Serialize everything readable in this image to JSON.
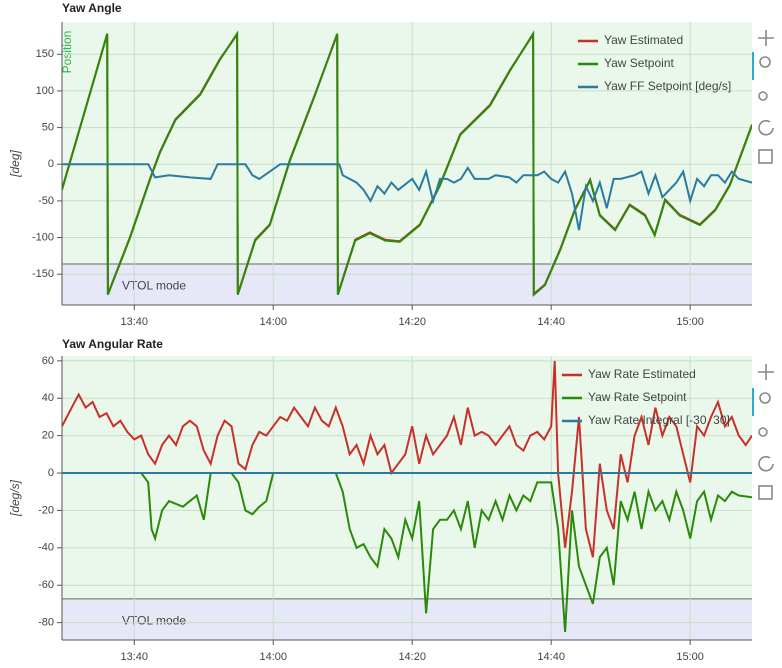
{
  "chart_data": [
    {
      "type": "line",
      "title": "Yaw Angle",
      "ylabel": "[deg]",
      "mode_label": "VTOL mode",
      "side_label": "Position",
      "xlim": [
        809.6,
        908.9
      ],
      "ylim": [
        -192,
        194
      ],
      "xticks": [
        {
          "value": 820,
          "label": "13:40"
        },
        {
          "value": 840,
          "label": "14:00"
        },
        {
          "value": 860,
          "label": "14:20"
        },
        {
          "value": 880,
          "label": "14:40"
        },
        {
          "value": 900,
          "label": "15:00"
        }
      ],
      "yticks": [
        -150,
        -100,
        -50,
        0,
        50,
        100,
        150
      ],
      "grid": true,
      "legend": "top-right",
      "series": [
        {
          "name": "Yaw Estimated",
          "color": "#c8302a",
          "x": [
            809.6,
            816.1,
            816.2,
            819.4,
            822.3,
            823.7,
            825.9,
            829.5,
            832.3,
            834.8,
            834.9,
            837.4,
            839.5,
            842.4,
            846,
            849.2,
            849.3,
            851.8,
            853.9,
            856.1,
            858.2,
            861.1,
            864,
            866.9,
            871.2,
            874.1,
            877.4,
            877.5,
            879.1,
            881.3,
            883.4,
            885.6,
            887,
            889.2,
            891.3,
            893.5,
            894.9,
            896.4,
            898.5,
            901.4,
            903.6,
            905.7,
            908.9
          ],
          "values": [
            -34,
            177,
            -177,
            -99,
            -19,
            17,
            61,
            96,
            143,
            177,
            -177,
            -103,
            -82,
            6,
            95,
            177,
            -177,
            -103,
            -93,
            -103,
            -105,
            -82,
            -28,
            41,
            81,
            129,
            177,
            -177,
            -164,
            -116,
            -62,
            -21,
            -69,
            -89,
            -55,
            -69,
            -96,
            -48,
            -69,
            -82,
            -62,
            -28,
            54
          ]
        },
        {
          "name": "Yaw Setpoint",
          "color": "#2a8a0a",
          "x": [
            809.6,
            816.1,
            816.2,
            819.4,
            822.3,
            823.7,
            825.9,
            829.5,
            832.3,
            834.8,
            834.9,
            837.4,
            839.5,
            842.4,
            846,
            849.2,
            849.3,
            851.8,
            853.9,
            856.1,
            858.2,
            861.1,
            864,
            866.9,
            871.2,
            874.1,
            877.4,
            877.5,
            879.1,
            881.3,
            883.4,
            885.6,
            887,
            889.2,
            891.3,
            893.5,
            894.9,
            896.4,
            898.5,
            901.4,
            903.6,
            905.7,
            908.9
          ],
          "values": [
            -35,
            178,
            -178,
            -100,
            -20,
            16,
            60,
            95,
            142,
            178,
            -178,
            -104,
            -83,
            5,
            94,
            178,
            -178,
            -104,
            -94,
            -104,
            -106,
            -83,
            -29,
            40,
            80,
            128,
            178,
            -178,
            -165,
            -117,
            -63,
            -22,
            -70,
            -90,
            -56,
            -70,
            -97,
            -49,
            -70,
            -83,
            -63,
            -29,
            53
          ]
        },
        {
          "name": "Yaw FF Setpoint [deg/s]",
          "color": "#2b7ba0",
          "x": [
            809.6,
            822,
            823,
            825,
            828,
            831,
            832,
            836,
            837,
            838,
            841,
            849.5,
            850,
            852,
            853,
            854,
            855,
            856,
            857,
            858,
            860,
            861,
            862,
            863,
            864,
            865,
            866,
            867,
            868,
            869,
            871,
            872,
            874,
            875,
            876,
            878,
            879,
            880,
            881,
            882,
            883,
            884,
            885,
            886,
            887,
            888,
            889,
            890,
            892,
            893,
            894,
            895,
            896,
            897,
            898,
            899,
            900,
            901,
            902,
            903,
            904,
            905,
            906,
            907,
            908.9
          ],
          "values": [
            0,
            0,
            -18,
            -15,
            -18,
            -20,
            0,
            0,
            -15,
            -20,
            0,
            0,
            -15,
            -25,
            -35,
            -50,
            -30,
            -40,
            -25,
            -35,
            -20,
            -35,
            -10,
            -50,
            -20,
            -20,
            -25,
            -20,
            -5,
            -20,
            -20,
            -15,
            -18,
            -25,
            -15,
            -15,
            -10,
            -20,
            -25,
            -10,
            -40,
            -90,
            -30,
            -50,
            -25,
            -60,
            -20,
            -20,
            -15,
            -10,
            -40,
            -15,
            -45,
            -35,
            -25,
            -10,
            -50,
            -20,
            -30,
            -15,
            -15,
            -25,
            -10,
            -20,
            -25
          ]
        }
      ]
    },
    {
      "type": "line",
      "title": "Yaw Angular Rate",
      "ylabel": "[deg/s]",
      "mode_label": "VTOL mode",
      "xlim": [
        809.6,
        908.9
      ],
      "ylim": [
        -89.3,
        62.6
      ],
      "xticks": [
        {
          "value": 820,
          "label": "13:40"
        },
        {
          "value": 840,
          "label": "14:00"
        },
        {
          "value": 860,
          "label": "14:20"
        },
        {
          "value": 880,
          "label": "14:40"
        },
        {
          "value": 900,
          "label": "15:00"
        }
      ],
      "yticks": [
        -80,
        -60,
        -40,
        -20,
        0,
        20,
        40,
        60
      ],
      "grid": true,
      "legend": "top-right",
      "series": [
        {
          "name": "Yaw Rate Estimated",
          "color": "#c8302a",
          "x": [
            809.6,
            811,
            812,
            813,
            814,
            815,
            816,
            817,
            818,
            819,
            820,
            821,
            822,
            823,
            824,
            825,
            826,
            827,
            828,
            829,
            830,
            831,
            832,
            833,
            834,
            835,
            836,
            837,
            838,
            839,
            840,
            841,
            842,
            843,
            844,
            845,
            846,
            847,
            848,
            849,
            850,
            851,
            852,
            853,
            854,
            855,
            856,
            857,
            858,
            859,
            860,
            861,
            862,
            863,
            864,
            865,
            866,
            867,
            868,
            869,
            870,
            871,
            872,
            873,
            874,
            875,
            876,
            877,
            878,
            879,
            880,
            880.5,
            881,
            882,
            883,
            884,
            885,
            886,
            887,
            888,
            889,
            890,
            891,
            892,
            893,
            894,
            895,
            896,
            897,
            898,
            899,
            900,
            901,
            902,
            903,
            904,
            905,
            906,
            907,
            908,
            908.9
          ],
          "values": [
            25,
            35,
            42,
            35,
            38,
            30,
            32,
            25,
            28,
            22,
            18,
            20,
            10,
            5,
            15,
            20,
            15,
            25,
            28,
            25,
            12,
            5,
            20,
            28,
            25,
            5,
            2,
            15,
            22,
            20,
            25,
            30,
            28,
            35,
            30,
            25,
            35,
            28,
            25,
            35,
            25,
            10,
            15,
            5,
            20,
            10,
            15,
            0,
            5,
            10,
            25,
            5,
            20,
            10,
            15,
            20,
            30,
            15,
            35,
            20,
            22,
            20,
            15,
            20,
            25,
            15,
            12,
            20,
            22,
            18,
            25,
            60,
            0,
            -40,
            -10,
            30,
            -30,
            -45,
            5,
            -20,
            -30,
            10,
            -5,
            20,
            30,
            15,
            35,
            20,
            30,
            25,
            10,
            -5,
            25,
            20,
            30,
            38,
            25,
            30,
            20,
            15,
            20
          ]
        },
        {
          "name": "Yaw Rate Setpoint",
          "color": "#2a8a0a",
          "x": [
            809.6,
            821,
            822,
            822.5,
            823,
            824,
            825,
            827,
            829,
            830,
            831,
            834,
            835,
            836,
            837,
            838,
            839,
            840,
            849,
            850,
            851,
            852,
            853,
            854,
            855,
            856,
            857,
            858,
            859,
            860,
            861,
            862,
            863,
            864,
            865,
            866,
            867,
            868,
            869,
            870,
            871,
            872,
            873,
            874,
            875,
            876,
            877,
            878,
            879,
            880,
            881,
            882,
            883,
            884,
            885,
            886,
            887,
            888,
            889,
            890,
            891,
            892,
            893,
            894,
            895,
            896,
            897,
            898,
            899,
            900,
            901,
            902,
            903,
            904,
            905,
            906,
            907,
            908.9
          ],
          "values": [
            0,
            0,
            -5,
            -30,
            -35,
            -20,
            -15,
            -18,
            -12,
            -25,
            0,
            0,
            -5,
            -20,
            -22,
            -18,
            -15,
            0,
            0,
            -10,
            -30,
            -40,
            -38,
            -45,
            -50,
            -30,
            -35,
            -45,
            -25,
            -35,
            -15,
            -75,
            -30,
            -25,
            -25,
            -20,
            -30,
            -15,
            -40,
            -20,
            -25,
            -15,
            -25,
            -12,
            -20,
            -12,
            -15,
            -5,
            -5,
            -5,
            -30,
            -85,
            -20,
            -50,
            -60,
            -70,
            -45,
            -40,
            -60,
            -15,
            -25,
            -10,
            -30,
            -10,
            -20,
            -15,
            -25,
            -10,
            -20,
            -35,
            -15,
            -10,
            -25,
            -12,
            -15,
            -10,
            -12,
            -13
          ]
        },
        {
          "name": "Yaw Rate Integral [-30, 30]",
          "color": "#2b7ba0",
          "x": [
            809.6,
            908.9
          ],
          "values": [
            0,
            0
          ]
        }
      ]
    }
  ]
}
